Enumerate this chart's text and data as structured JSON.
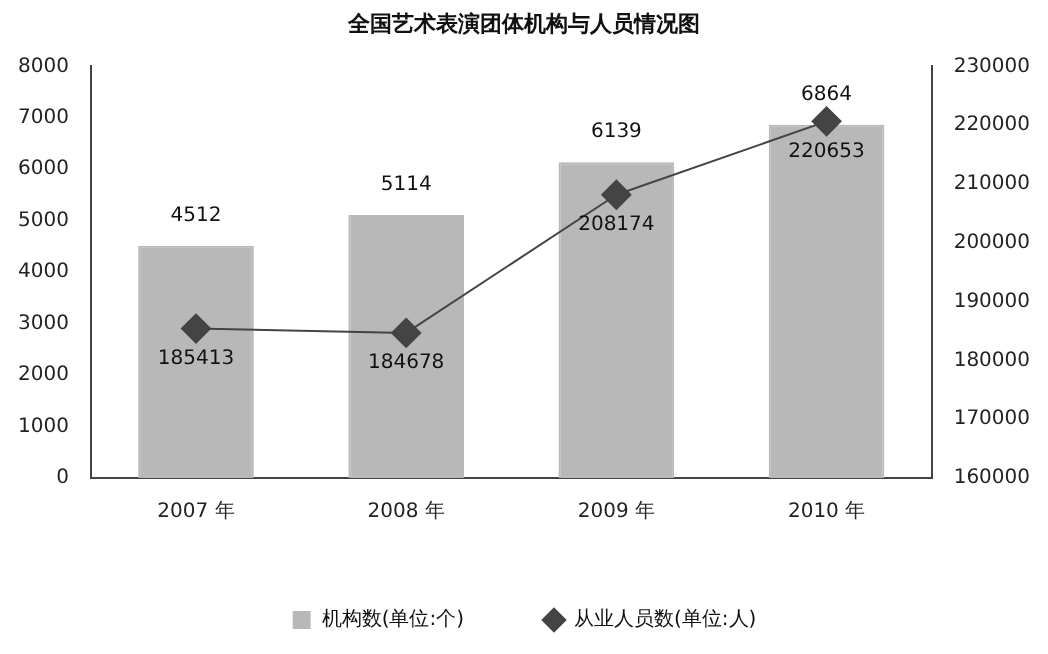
{
  "chart_data": {
    "type": "bar",
    "title": "全国艺术表演团体机构与人员情况图",
    "categories": [
      "2007 年",
      "2008 年",
      "2009 年",
      "2010 年"
    ],
    "series": [
      {
        "name": "机构数(单位:个)",
        "color": "#b8b8b8",
        "values": [
          4512,
          5114,
          6139,
          6864
        ]
      },
      {
        "name": "从业人员数(单位:人)",
        "type": "line",
        "axis": "y2",
        "color": "#444444",
        "values": [
          185413,
          184678,
          208174,
          220653
        ]
      }
    ],
    "ylim": [
      0,
      8000
    ],
    "yticks": [
      0,
      1000,
      2000,
      3000,
      4000,
      5000,
      6000,
      7000,
      8000
    ],
    "y2lim": [
      160000,
      230000
    ],
    "y2ticks": [
      160000,
      170000,
      180000,
      190000,
      200000,
      210000,
      220000,
      230000
    ],
    "data_labels": true,
    "legend": "bottom",
    "marker": "diamond"
  }
}
